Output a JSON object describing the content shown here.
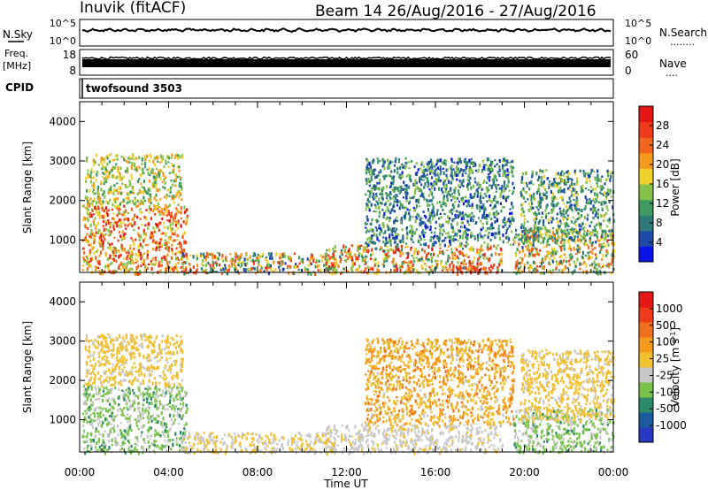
{
  "header": {
    "station": "Inuvik (fitACF)",
    "beam_info": "Beam 14 26/Aug/2016 - 27/Aug/2016"
  },
  "nsky_panel": {
    "left_label": "N.Sky",
    "right_label": "N.Search",
    "right_dots": "........",
    "left_ticks": [
      "10^5",
      "10^0"
    ],
    "right_ticks": [
      "10^5",
      "10^0"
    ]
  },
  "freq_panel": {
    "left_label_top": "Freq.",
    "left_label_bottom": "[MHz]",
    "right_label": "Nave",
    "right_dots": "....",
    "left_ticks": [
      "18",
      "8"
    ],
    "right_ticks": [
      "60",
      "0"
    ]
  },
  "cpid": {
    "label": "CPID",
    "value": "twofsound 3503"
  },
  "colors": {
    "power_scale": [
      "#0a14e6",
      "#1e4aa8",
      "#2f7a78",
      "#3f9a60",
      "#86c24a",
      "#f0d22c",
      "#f49a1c",
      "#f0641e",
      "#ee3a1a",
      "#e51616"
    ],
    "velocity_scale": [
      "#e51616",
      "#ee3a1a",
      "#f07020",
      "#f49a1c",
      "#f0c030",
      "#c8c8c8",
      "#7bc24a",
      "#2a8a6a",
      "#1e5aa0",
      "#2838c0"
    ]
  },
  "chart_data": [
    {
      "type": "heatmap",
      "name": "power",
      "xlabel": "",
      "ylabel": "Slant Range [km]",
      "xlim_hours": [
        0,
        24
      ],
      "ylim_km": [
        180,
        4500
      ],
      "y_ticks": [
        "4000",
        "3000",
        "2000",
        "1000"
      ],
      "y_tick_values": [
        4000,
        3000,
        2000,
        1000
      ],
      "colorbar": {
        "label": "Power [dB]",
        "tick_labels": [
          "28",
          "24",
          "20",
          "16",
          "12",
          "8",
          "4"
        ],
        "tick_values": [
          28,
          24,
          20,
          16,
          12,
          8,
          4
        ],
        "range": [
          0,
          32
        ]
      },
      "regions": [
        {
          "t": [
            0.1,
            4.8
          ],
          "r": [
            180,
            1900
          ],
          "v": [
            13,
            31
          ]
        },
        {
          "t": [
            0.2,
            4.6
          ],
          "r": [
            1900,
            3200
          ],
          "v": [
            10,
            22
          ]
        },
        {
          "t": [
            4.5,
            11.5
          ],
          "r": [
            180,
            700
          ],
          "v": [
            4,
            28
          ]
        },
        {
          "t": [
            11.0,
            19.0
          ],
          "r": [
            180,
            900
          ],
          "v": [
            8,
            30
          ]
        },
        {
          "t": [
            12.8,
            19.5
          ],
          "r": [
            900,
            3100
          ],
          "v": [
            2,
            16
          ]
        },
        {
          "t": [
            19.5,
            24.0
          ],
          "r": [
            180,
            1300
          ],
          "v": [
            6,
            26
          ]
        },
        {
          "t": [
            19.8,
            24.0
          ],
          "r": [
            1000,
            2800
          ],
          "v": [
            4,
            18
          ]
        },
        {
          "t": [
            16.5,
            18.6
          ],
          "r": [
            180,
            450
          ],
          "v": [
            22,
            31
          ]
        }
      ]
    },
    {
      "type": "heatmap",
      "name": "velocity",
      "xlabel": "Time UT",
      "ylabel": "Slant Range [km]",
      "xlim_hours": [
        0,
        24
      ],
      "ylim_km": [
        180,
        4500
      ],
      "y_ticks": [
        "4000",
        "3000",
        "2000",
        "1000"
      ],
      "y_tick_values": [
        4000,
        3000,
        2000,
        1000
      ],
      "x_ticks": [
        "00:00",
        "04:00",
        "08:00",
        "12:00",
        "16:00",
        "20:00",
        "00:00"
      ],
      "x_tick_hours": [
        0,
        4,
        8,
        12,
        16,
        20,
        24
      ],
      "colorbar": {
        "label": "Velocity [m s^-1]",
        "tick_labels": [
          "1000",
          "500",
          "100",
          "25",
          "-25",
          "-100",
          "-500",
          "-1000"
        ],
        "tick_values": [
          1000,
          500,
          100,
          25,
          -25,
          -100,
          -500,
          -1000
        ]
      },
      "regions": [
        {
          "t": [
            0.1,
            4.8
          ],
          "r": [
            180,
            1900
          ],
          "v": [
            -500,
            -100
          ]
        },
        {
          "t": [
            0.2,
            4.6
          ],
          "r": [
            1900,
            3200
          ],
          "v": [
            -25,
            100
          ]
        },
        {
          "t": [
            4.5,
            11.5
          ],
          "r": [
            180,
            700
          ],
          "v": [
            -100,
            100
          ]
        },
        {
          "t": [
            11.0,
            19.0
          ],
          "r": [
            180,
            900
          ],
          "v": [
            -100,
            25
          ]
        },
        {
          "t": [
            12.8,
            19.5
          ],
          "r": [
            900,
            3100
          ],
          "v": [
            -25,
            500
          ]
        },
        {
          "t": [
            19.5,
            24.0
          ],
          "r": [
            180,
            1300
          ],
          "v": [
            -500,
            -100
          ]
        },
        {
          "t": [
            19.8,
            24.0
          ],
          "r": [
            1000,
            2800
          ],
          "v": [
            -25,
            100
          ]
        }
      ]
    }
  ]
}
